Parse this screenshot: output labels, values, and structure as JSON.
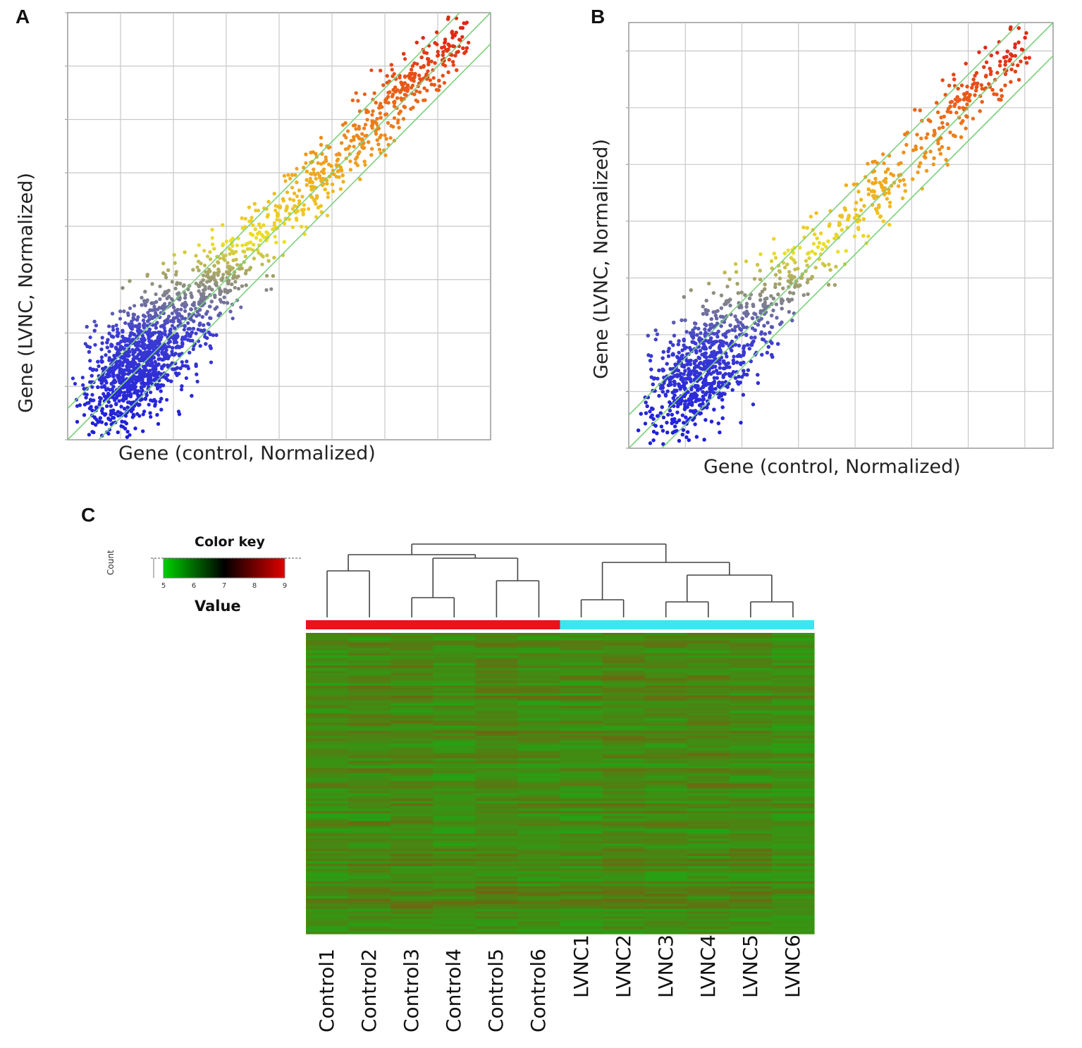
{
  "panels": {
    "A": {
      "letter": "A",
      "xlabel": "Gene (control, Normalized)",
      "ylabel": "Gene (LVNC, Normalized)",
      "xlim": [
        0,
        8
      ],
      "ylim": [
        0,
        8
      ],
      "grid": true,
      "fold_lines": [
        -0.585,
        0,
        0.585
      ]
    },
    "B": {
      "letter": "B",
      "xlabel": "Gene (control, Normalized)",
      "ylabel": "Gene (LVNC, Normalized)",
      "xlim": [
        0,
        7.5
      ],
      "ylim": [
        0,
        7.5
      ],
      "grid": true,
      "fold_lines": [
        -0.585,
        0,
        0.585
      ]
    },
    "C": {
      "letter": "C"
    }
  },
  "chart_data": [
    {
      "type": "scatter",
      "panel": "A",
      "xlabel": "Gene (control, Normalized)",
      "ylabel": "Gene (LVNC, Normalized)",
      "xlim": [
        0,
        8
      ],
      "ylim": [
        0,
        8
      ],
      "grid": true,
      "color_by": "expression level (low blue → yellow → high red)",
      "density_center": [
        1.8,
        1.5
      ],
      "upper_extreme": [
        7.6,
        7.8
      ]
    },
    {
      "type": "scatter",
      "panel": "B",
      "xlabel": "Gene (control, Normalized)",
      "ylabel": "Gene (LVNC, Normalized)",
      "xlim": [
        0,
        7.5
      ],
      "ylim": [
        0,
        7.5
      ],
      "grid": true,
      "color_by": "expression level (low blue → yellow → high red)",
      "density_center": [
        1.7,
        1.3
      ],
      "upper_extreme": [
        7.3,
        7.2
      ]
    },
    {
      "type": "heatmap",
      "panel": "C",
      "color_key": {
        "title": "Color key",
        "xlabel": "Value",
        "ylabel": "Count",
        "ticks": [
          "5",
          "6",
          "7",
          "8",
          "9"
        ],
        "colors": [
          "#00d000",
          "#000000",
          "#e00000"
        ]
      },
      "columns": [
        "Control1",
        "Control2",
        "Control3",
        "Control4",
        "Control5",
        "Control6",
        "LVNC1",
        "LVNC2",
        "LVNC3",
        "LVNC4",
        "LVNC5",
        "LVNC6"
      ],
      "groups": [
        {
          "name": "Control",
          "color": "#e8141c",
          "count": 6
        },
        {
          "name": "LVNC",
          "color": "#3fe4f2",
          "count": 6
        }
      ],
      "dendrogram_order": [
        [
          [
            "Control1",
            "Control2"
          ],
          [
            [
              "Control3",
              "Control4"
            ],
            [
              "Control5",
              "Control6"
            ]
          ]
        ],
        [
          [
            "LVNC1",
            "LVNC2"
          ],
          [
            [
              "LVNC3",
              "LVNC4"
            ],
            [
              "LVNC5",
              "LVNC6"
            ]
          ]
        ]
      ],
      "row_count": 120,
      "value_range": [
        5,
        9
      ]
    }
  ]
}
